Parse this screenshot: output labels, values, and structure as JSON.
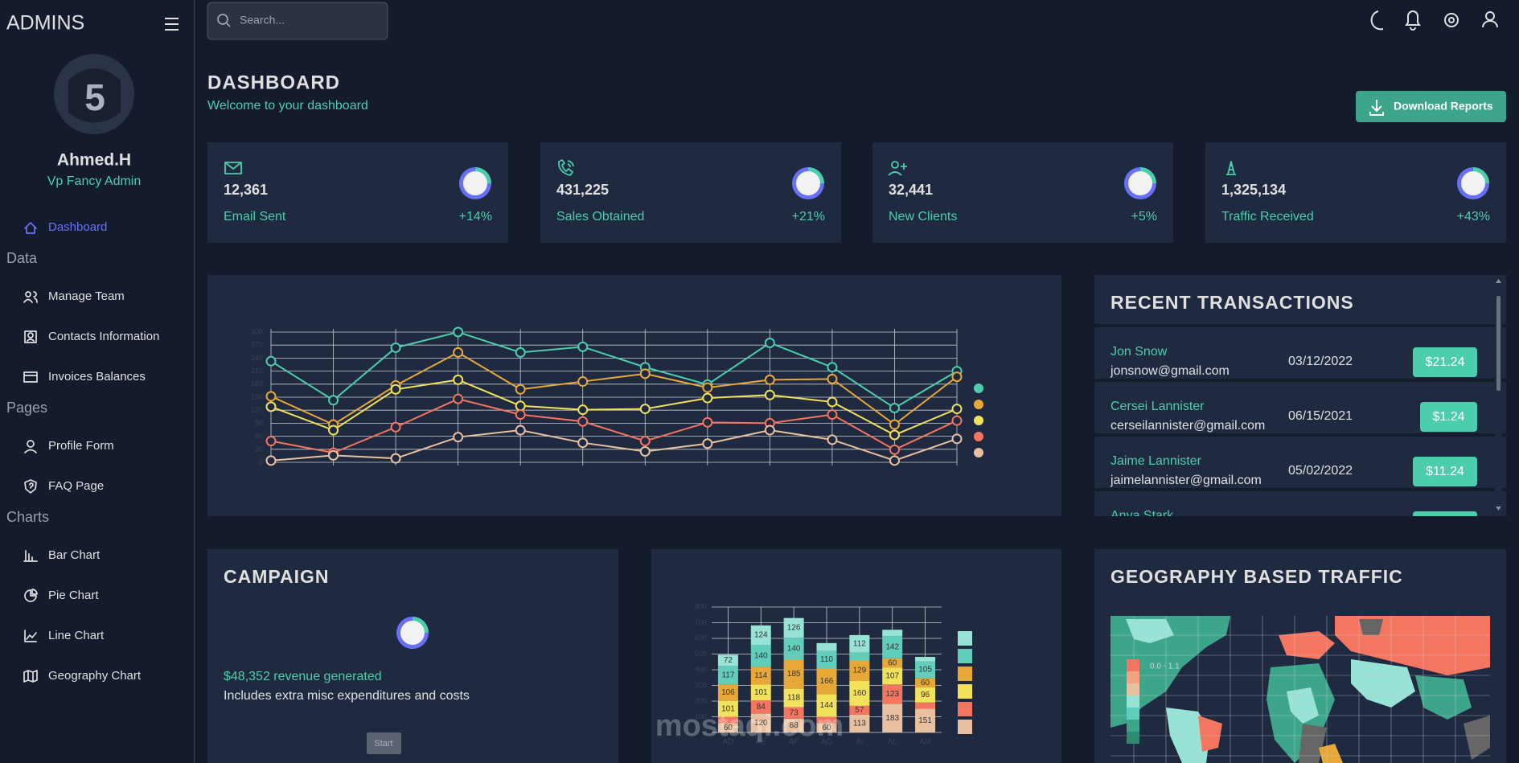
{
  "sidebar": {
    "brand": "ADMINS",
    "user": {
      "name": "Ahmed.H",
      "role": "Vp Fancy Admin"
    },
    "menu": [
      {
        "section": null,
        "items": [
          "Dashboard"
        ]
      },
      {
        "section": "Data",
        "items": [
          "Manage Team",
          "Contacts Information",
          "Invoices Balances"
        ]
      },
      {
        "section": "Pages",
        "items": [
          "Profile Form",
          "FAQ Page"
        ]
      },
      {
        "section": "Charts",
        "items": [
          "Bar Chart",
          "Pie Chart",
          "Line Chart",
          "Geography Chart"
        ]
      }
    ]
  },
  "search_placeholder": "Search...",
  "header": {
    "title": "DASHBOARD",
    "subtitle": "Welcome to your dashboard",
    "button": "Download Reports"
  },
  "stats": [
    {
      "value": "12,361",
      "label": "Email Sent",
      "change": "+14%"
    },
    {
      "value": "431,225",
      "label": "Sales Obtained",
      "change": "+21%"
    },
    {
      "value": "32,441",
      "label": "New Clients",
      "change": "+5%"
    },
    {
      "value": "1,325,134",
      "label": "Traffic Received",
      "change": "+43%"
    }
  ],
  "transactions": {
    "title": "RECENT TRANSACTIONS",
    "rows": [
      {
        "name": "Jon Snow",
        "email": "jonsnow@gmail.com",
        "date": "03/12/2022",
        "cost": "$21.24"
      },
      {
        "name": "Cersei Lannister",
        "email": "cerseilannister@gmail.com",
        "date": "06/15/2021",
        "cost": "$1.24"
      },
      {
        "name": "Jaime Lannister",
        "email": "jaimelannister@gmail.com",
        "date": "05/02/2022",
        "cost": "$11.24"
      },
      {
        "name": "Anya Stark"
      }
    ]
  },
  "campaign": {
    "title": "CAMPAIGN",
    "revenue": "$48,352 revenue generated",
    "note": "Includes extra misc expenditures and costs",
    "button": "Start"
  },
  "geography": {
    "title": "GEOGRAPHY BASED TRAFFIC",
    "legend": "0.0 - 1.1"
  },
  "watermark": "mostaqi.com",
  "chart_data": [
    {
      "type": "line",
      "categories": [
        null,
        null,
        null,
        null,
        null,
        null,
        null,
        null,
        null,
        null,
        null,
        null
      ],
      "ylim": [
        0,
        300
      ],
      "yticks": [
        0,
        30,
        60,
        90,
        120,
        150,
        180,
        210,
        240,
        270,
        300
      ],
      "grid": true,
      "series": [
        {
          "color": "#4cceac",
          "values": [
            233,
            143,
            264,
            300,
            253,
            266,
            219,
            179,
            275,
            219,
            125,
            210
          ]
        },
        {
          "color": "#e8a838",
          "values": [
            152,
            87,
            177,
            253,
            168,
            186,
            204,
            172,
            190,
            192,
            87,
            197
          ]
        },
        {
          "color": "#f1e15b",
          "values": [
            128,
            74,
            168,
            190,
            130,
            121,
            123,
            148,
            155,
            139,
            63,
            123
          ]
        },
        {
          "color": "#f47560",
          "values": [
            49,
            22,
            81,
            146,
            110,
            94,
            49,
            92,
            90,
            110,
            29,
            96
          ]
        },
        {
          "color": "#e8c1a0",
          "values": [
            4,
            16,
            9,
            58,
            74,
            45,
            25,
            43,
            74,
            52,
            4,
            54
          ]
        }
      ]
    },
    {
      "type": "stacked_bar",
      "categories": [
        "AD",
        "AE",
        "AF",
        "AG",
        "AI",
        "AL",
        "AM"
      ],
      "ylim": [
        0,
        800
      ],
      "yticks": [
        0,
        100,
        200,
        300,
        400,
        500,
        600,
        700,
        800
      ],
      "grid": true,
      "series": [
        {
          "color": "#e8c1a0",
          "values": [
            60,
            120,
            88,
            60,
            113,
            183,
            151
          ]
        },
        {
          "color": "#f47560",
          "values": [
            40,
            84,
            73,
            40,
            57,
            123,
            40
          ]
        },
        {
          "color": "#f1e15b",
          "values": [
            101,
            101,
            118,
            144,
            160,
            107,
            96
          ]
        },
        {
          "color": "#e8a838",
          "values": [
            106,
            114,
            185,
            166,
            129,
            60,
            60
          ]
        },
        {
          "color": "#61cdbb",
          "values": [
            117,
            140,
            140,
            110,
            50,
            142,
            105
          ]
        },
        {
          "color": "#97e3d5",
          "values": [
            72,
            124,
            126,
            50,
            112,
            40,
            30
          ]
        }
      ]
    }
  ]
}
